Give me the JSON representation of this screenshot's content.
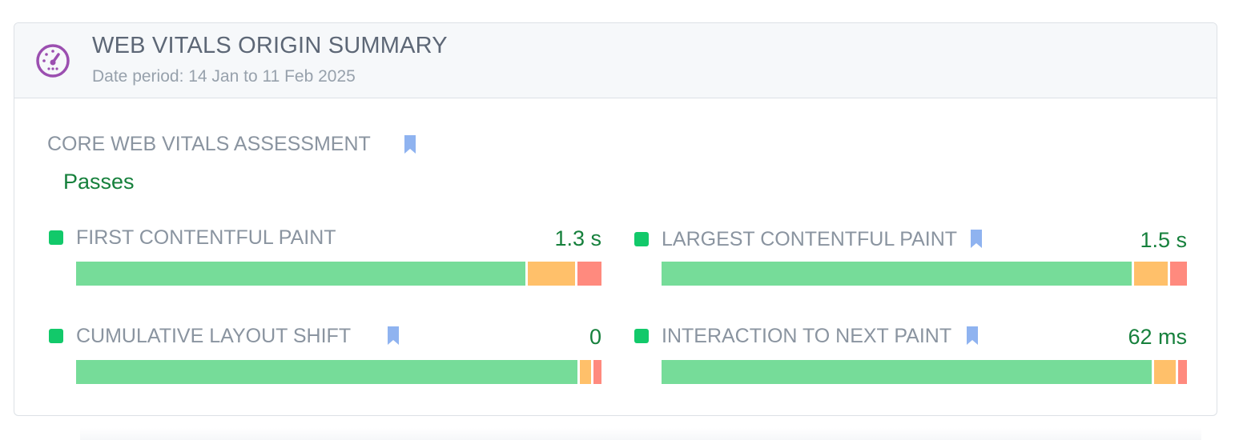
{
  "header": {
    "title": "WEB VITALS ORIGIN SUMMARY",
    "subtitle": "Date period: 14 Jan to 11 Feb 2025",
    "icon": "speedometer-icon",
    "accent_color": "#9b4fb0"
  },
  "assessment": {
    "label": "CORE WEB VITALS ASSESSMENT",
    "status": "Passes",
    "status_color": "#16803c",
    "bookmark_icon": "bookmark-icon",
    "bookmark_color": "#8fb3f0"
  },
  "metrics": [
    {
      "name": "FIRST CONTENTFUL PAINT",
      "value": "1.3 s",
      "status": "good",
      "bookmarked": false,
      "distribution": {
        "good": 0.855,
        "needs_improvement": 0.095,
        "poor": 0.05
      }
    },
    {
      "name": "LARGEST CONTENTFUL PAINT",
      "value": "1.5 s",
      "status": "good",
      "bookmarked": true,
      "distribution": {
        "good": 0.895,
        "needs_improvement": 0.068,
        "poor": 0.037
      }
    },
    {
      "name": "CUMULATIVE LAYOUT SHIFT",
      "value": "0",
      "status": "good",
      "bookmarked": true,
      "distribution": {
        "good": 0.955,
        "needs_improvement": 0.025,
        "poor": 0.02
      }
    },
    {
      "name": "INTERACTION TO NEXT PAINT",
      "value": "62 ms",
      "status": "good",
      "bookmarked": true,
      "distribution": {
        "good": 0.933,
        "needs_improvement": 0.045,
        "poor": 0.022
      }
    }
  ],
  "colors": {
    "good_dot": "#12c96a",
    "good_bar": "#76dc99",
    "needs_improvement_bar": "#ffc06a",
    "poor_bar": "#ff8a7e"
  }
}
